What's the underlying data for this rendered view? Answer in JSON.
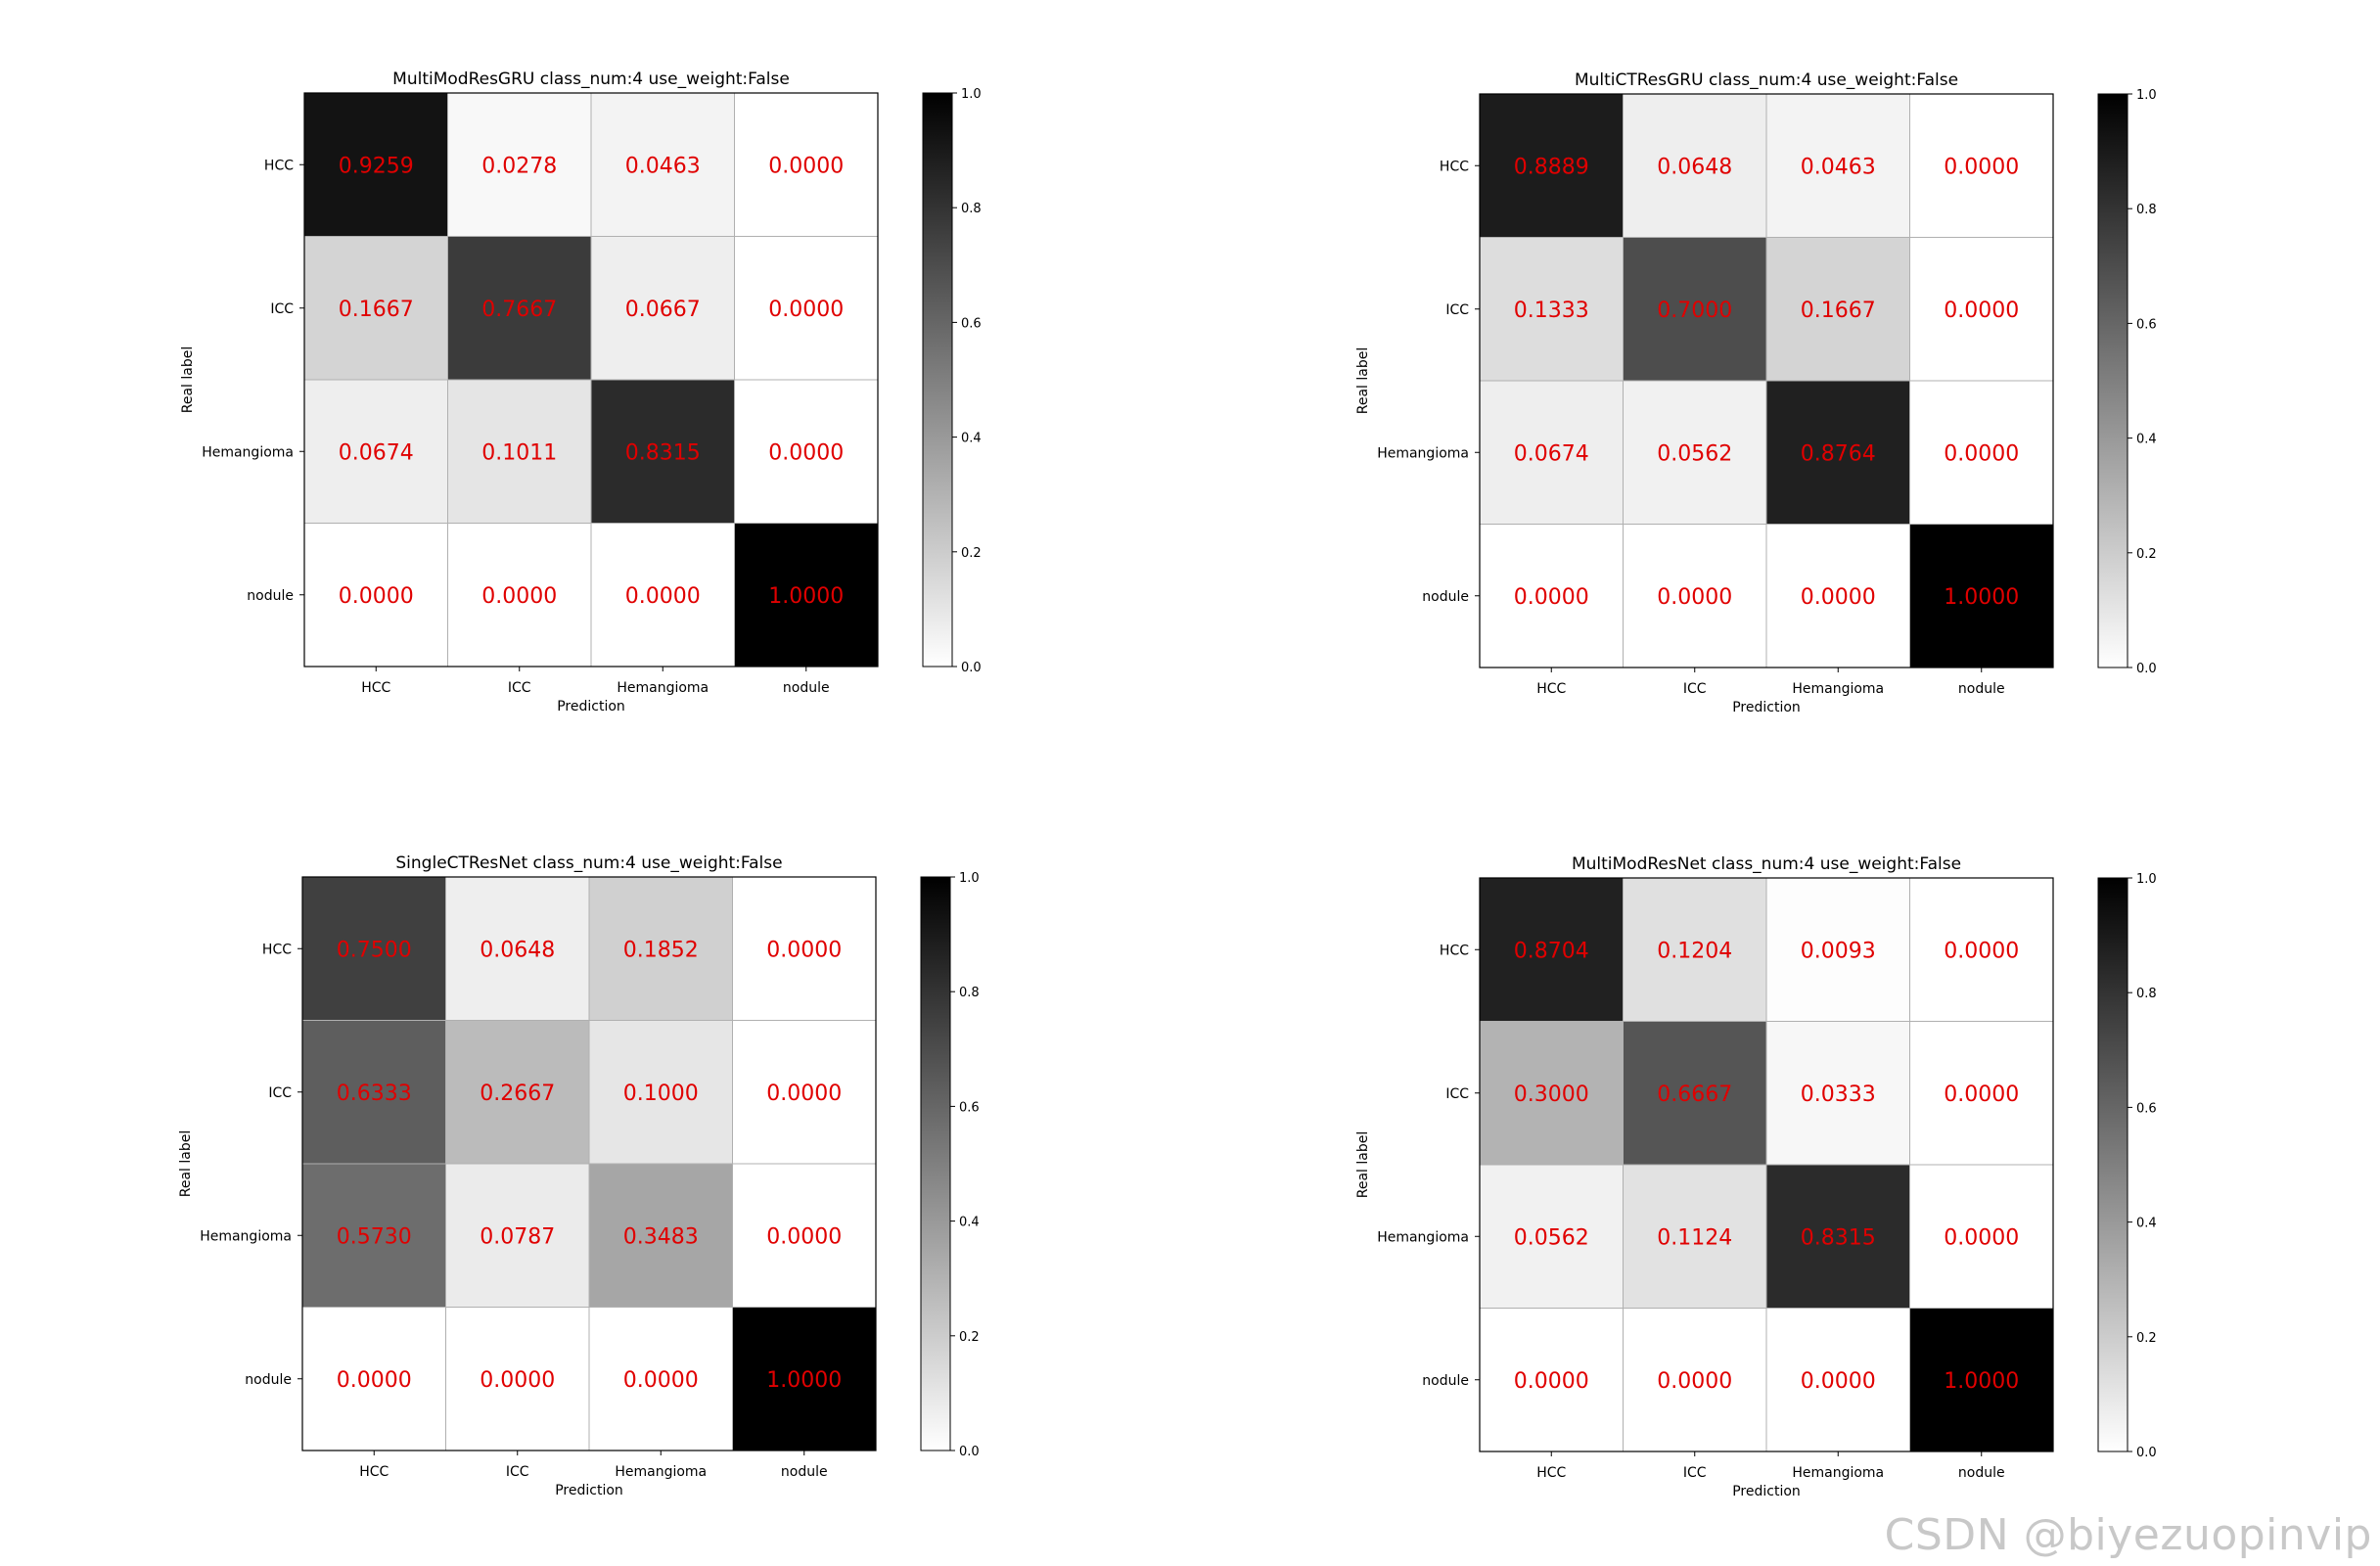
{
  "watermark": "CSDN @biyezuopinvip",
  "colors": {
    "cell_text": "#e00000",
    "cmap_low": "#ffffff",
    "cmap_high": "#000000"
  },
  "chart_data": [
    {
      "type": "heatmap",
      "title": "MultiModResGRU class_num:4 use_weight:False",
      "xlabel": "Prediction",
      "ylabel": "Real label",
      "x_categories": [
        "HCC",
        "ICC",
        "Hemangioma",
        "nodule"
      ],
      "y_categories": [
        "HCC",
        "ICC",
        "Hemangioma",
        "nodule"
      ],
      "values": [
        [
          0.9259,
          0.0278,
          0.0463,
          0.0
        ],
        [
          0.1667,
          0.7667,
          0.0667,
          0.0
        ],
        [
          0.0674,
          0.1011,
          0.8315,
          0.0
        ],
        [
          0.0,
          0.0,
          0.0,
          1.0
        ]
      ],
      "colorbar_range": [
        0.0,
        1.0
      ],
      "colorbar_ticks": [
        "0.0",
        "0.2",
        "0.4",
        "0.6",
        "0.8",
        "1.0"
      ],
      "colormap": "greys"
    },
    {
      "type": "heatmap",
      "title": "MultiCTResGRU class_num:4 use_weight:False",
      "xlabel": "Prediction",
      "ylabel": "Real label",
      "x_categories": [
        "HCC",
        "ICC",
        "Hemangioma",
        "nodule"
      ],
      "y_categories": [
        "HCC",
        "ICC",
        "Hemangioma",
        "nodule"
      ],
      "values": [
        [
          0.8889,
          0.0648,
          0.0463,
          0.0
        ],
        [
          0.1333,
          0.7,
          0.1667,
          0.0
        ],
        [
          0.0674,
          0.0562,
          0.8764,
          0.0
        ],
        [
          0.0,
          0.0,
          0.0,
          1.0
        ]
      ],
      "colorbar_range": [
        0.0,
        1.0
      ],
      "colorbar_ticks": [
        "0.0",
        "0.2",
        "0.4",
        "0.6",
        "0.8",
        "1.0"
      ],
      "colormap": "greys"
    },
    {
      "type": "heatmap",
      "title": "SingleCTResNet class_num:4 use_weight:False",
      "xlabel": "Prediction",
      "ylabel": "Real label",
      "x_categories": [
        "HCC",
        "ICC",
        "Hemangioma",
        "nodule"
      ],
      "y_categories": [
        "HCC",
        "ICC",
        "Hemangioma",
        "nodule"
      ],
      "values": [
        [
          0.75,
          0.0648,
          0.1852,
          0.0
        ],
        [
          0.6333,
          0.2667,
          0.1,
          0.0
        ],
        [
          0.573,
          0.0787,
          0.3483,
          0.0
        ],
        [
          0.0,
          0.0,
          0.0,
          1.0
        ]
      ],
      "colorbar_range": [
        0.0,
        1.0
      ],
      "colorbar_ticks": [
        "0.0",
        "0.2",
        "0.4",
        "0.6",
        "0.8",
        "1.0"
      ],
      "colormap": "greys"
    },
    {
      "type": "heatmap",
      "title": "MultiModResNet class_num:4 use_weight:False",
      "xlabel": "Prediction",
      "ylabel": "Real label",
      "x_categories": [
        "HCC",
        "ICC",
        "Hemangioma",
        "nodule"
      ],
      "y_categories": [
        "HCC",
        "ICC",
        "Hemangioma",
        "nodule"
      ],
      "values": [
        [
          0.8704,
          0.1204,
          0.0093,
          0.0
        ],
        [
          0.3,
          0.6667,
          0.0333,
          0.0
        ],
        [
          0.0562,
          0.1124,
          0.8315,
          0.0
        ],
        [
          0.0,
          0.0,
          0.0,
          1.0
        ]
      ],
      "colorbar_range": [
        0.0,
        1.0
      ],
      "colorbar_ticks": [
        "0.0",
        "0.2",
        "0.4",
        "0.6",
        "0.8",
        "1.0"
      ],
      "colormap": "greys"
    }
  ]
}
